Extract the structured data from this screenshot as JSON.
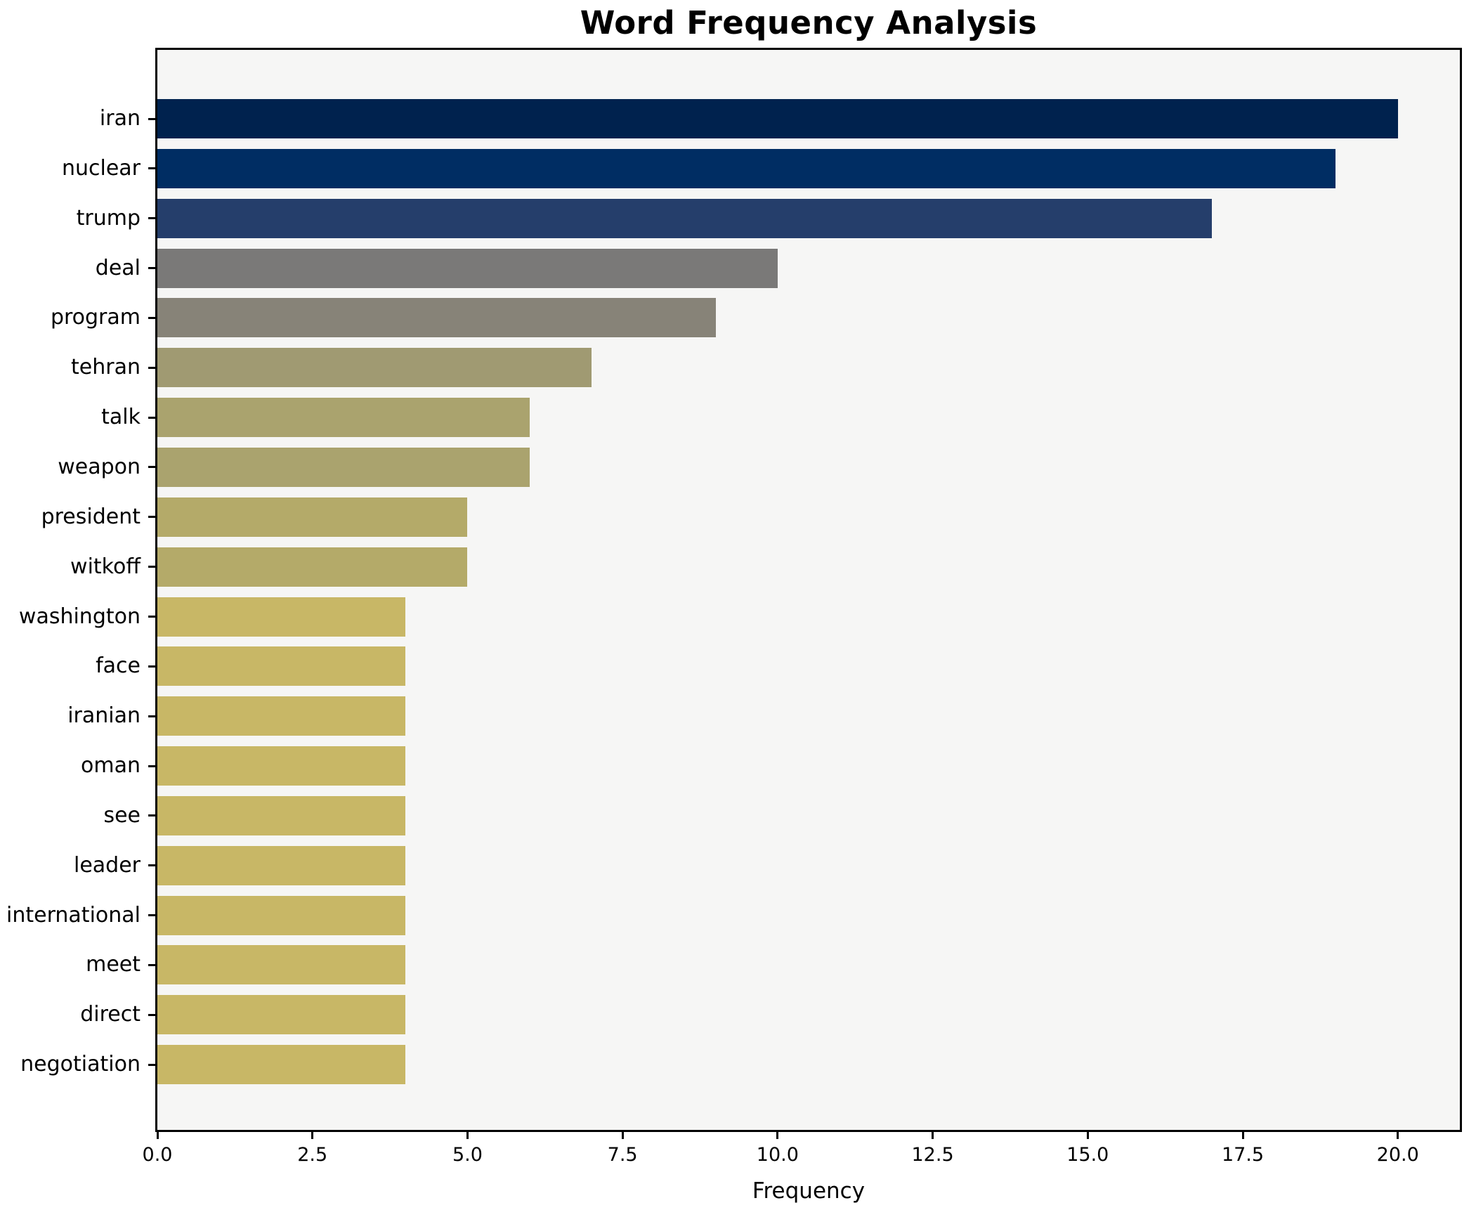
{
  "title": "Word Frequency Analysis",
  "chart_data": {
    "type": "bar",
    "orientation": "horizontal",
    "title": "Word Frequency Analysis",
    "xlabel": "Frequency",
    "ylabel": "",
    "xlim": [
      0,
      21
    ],
    "xticks": [
      0.0,
      2.5,
      5.0,
      7.5,
      10.0,
      12.5,
      15.0,
      17.5,
      20.0
    ],
    "xtick_labels": [
      "0.0",
      "2.5",
      "5.0",
      "7.5",
      "10.0",
      "12.5",
      "15.0",
      "17.5",
      "20.0"
    ],
    "grid": false,
    "legend": null,
    "categories": [
      "iran",
      "nuclear",
      "trump",
      "deal",
      "program",
      "tehran",
      "talk",
      "weapon",
      "president",
      "witkoff",
      "washington",
      "face",
      "iranian",
      "oman",
      "see",
      "leader",
      "international",
      "meet",
      "direct",
      "negotiation"
    ],
    "values": [
      20,
      19,
      17,
      10,
      9,
      7,
      6,
      6,
      5,
      5,
      4,
      4,
      4,
      4,
      4,
      4,
      4,
      4,
      4,
      4
    ],
    "bar_colors": [
      "#00224e",
      "#002d63",
      "#253e6b",
      "#7a7978",
      "#878378",
      "#a09a72",
      "#aaa36e",
      "#aaa36e",
      "#b4aa69",
      "#b4aa69",
      "#c8b766",
      "#c8b766",
      "#c8b766",
      "#c8b766",
      "#c8b766",
      "#c8b766",
      "#c8b766",
      "#c8b766",
      "#c8b766",
      "#c8b766"
    ],
    "plot_bg": "#f6f6f5",
    "figure_bg": "#ffffff",
    "spine_color": "#000000"
  },
  "layout_note": "values rendered as horizontal bars scaled to xlim max"
}
